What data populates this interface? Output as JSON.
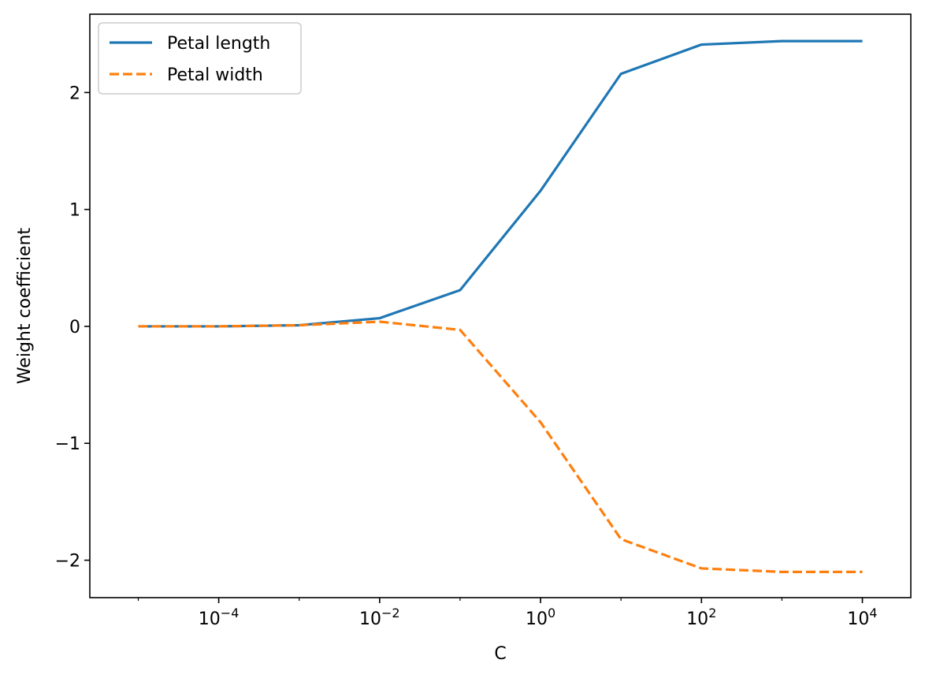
{
  "chart_data": {
    "type": "line",
    "title": "",
    "xlabel": "C",
    "ylabel": "Weight coefficient",
    "xscale": "log",
    "xlim": [
      2.5e-06,
      40000
    ],
    "ylim": [
      -2.32,
      2.67
    ],
    "xticks": [
      {
        "value": 0.0001,
        "base": "10",
        "exp": "−4"
      },
      {
        "value": 0.01,
        "base": "10",
        "exp": "−2"
      },
      {
        "value": 1,
        "base": "10",
        "exp": "0"
      },
      {
        "value": 100,
        "base": "10",
        "exp": "2"
      },
      {
        "value": 10000,
        "base": "10",
        "exp": "4"
      }
    ],
    "yticks": [
      {
        "value": -2,
        "label": "−2"
      },
      {
        "value": -1,
        "label": "−1"
      },
      {
        "value": 0,
        "label": "0"
      },
      {
        "value": 1,
        "label": "1"
      },
      {
        "value": 2,
        "label": "2"
      }
    ],
    "x": [
      1e-05,
      0.0001,
      0.001,
      0.01,
      0.1,
      1,
      10,
      100,
      1000,
      10000
    ],
    "series": [
      {
        "name": "Petal length",
        "color": "#1f77b4",
        "dash": "solid",
        "values": [
          0.0,
          0.0,
          0.01,
          0.07,
          0.31,
          1.16,
          2.16,
          2.41,
          2.44,
          2.44
        ]
      },
      {
        "name": "Petal width",
        "color": "#ff7f0e",
        "dash": "dashed",
        "values": [
          0.0,
          0.0,
          0.01,
          0.04,
          -0.03,
          -0.82,
          -1.82,
          -2.07,
          -2.1,
          -2.1
        ]
      }
    ],
    "legend": "top-left",
    "grid": false
  }
}
